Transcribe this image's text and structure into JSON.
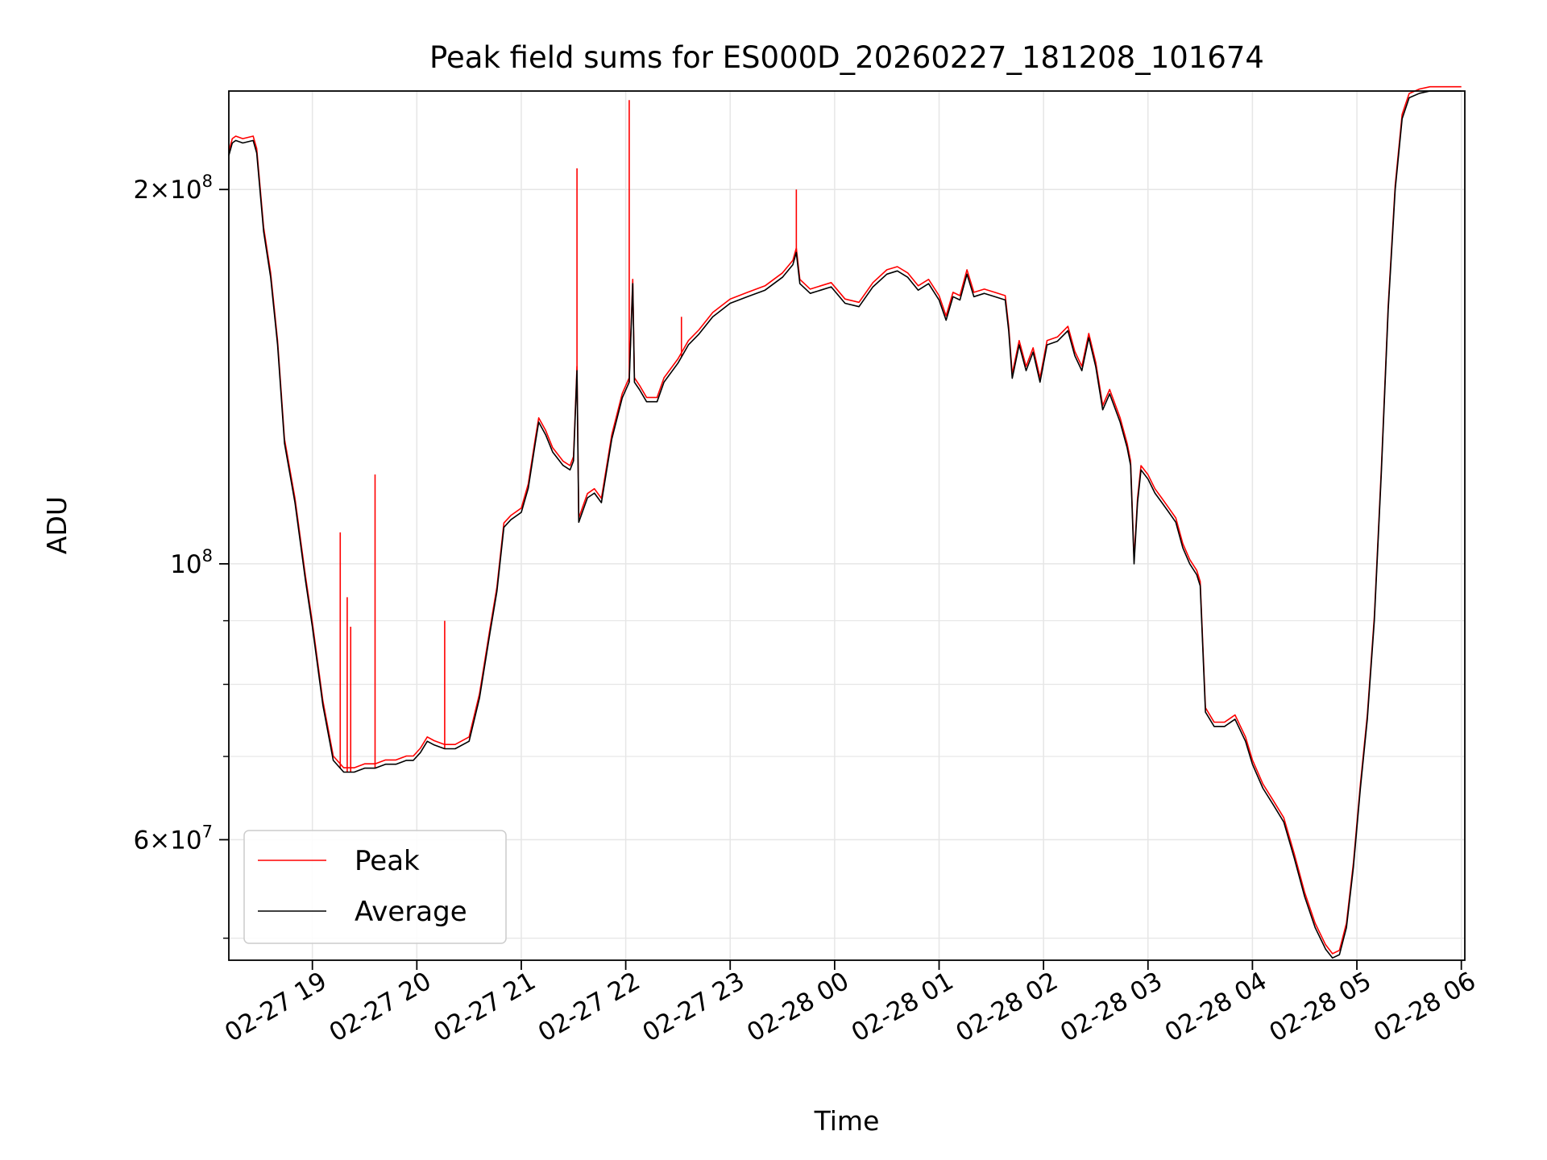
{
  "chart_data": {
    "type": "line",
    "title": "Peak field sums for ES000D_20260227_181208_101674",
    "xlabel": "Time",
    "ylabel": "ADU",
    "yscale": "log",
    "grid": true,
    "legend_position": "lower-left",
    "xlim": [
      "2026-02-27 18:12",
      "2026-02-28 06:02"
    ],
    "ylim": [
      48000000,
      240000000
    ],
    "x_ticks": [
      {
        "t": "2026-02-27 19:00",
        "label": "02-27 19"
      },
      {
        "t": "2026-02-27 20:00",
        "label": "02-27 20"
      },
      {
        "t": "2026-02-27 21:00",
        "label": "02-27 21"
      },
      {
        "t": "2026-02-27 22:00",
        "label": "02-27 22"
      },
      {
        "t": "2026-02-27 23:00",
        "label": "02-27 23"
      },
      {
        "t": "2026-02-28 00:00",
        "label": "02-28 00"
      },
      {
        "t": "2026-02-28 01:00",
        "label": "02-28 01"
      },
      {
        "t": "2026-02-28 02:00",
        "label": "02-28 02"
      },
      {
        "t": "2026-02-28 03:00",
        "label": "02-28 03"
      },
      {
        "t": "2026-02-28 04:00",
        "label": "02-28 04"
      },
      {
        "t": "2026-02-28 05:00",
        "label": "02-28 05"
      },
      {
        "t": "2026-02-28 06:00",
        "label": "02-28 06"
      }
    ],
    "y_ticks_major": [
      {
        "v": 60000000,
        "mant": "6",
        "exp": "7"
      },
      {
        "v": 100000000,
        "mant": "",
        "exp": "8"
      },
      {
        "v": 200000000,
        "mant": "2",
        "exp": "8"
      }
    ],
    "y_ticks_minor": [
      50000000,
      70000000,
      80000000,
      90000000
    ],
    "colors": {
      "peak": "#ff0000",
      "average": "#000000",
      "grid": "#e6e6e6"
    },
    "average_points": [
      [
        "2026-02-27 18:12",
        213000000
      ],
      [
        "2026-02-27 18:14",
        218000000
      ],
      [
        "2026-02-27 18:16",
        219000000
      ],
      [
        "2026-02-27 18:20",
        218000000
      ],
      [
        "2026-02-27 18:26",
        219000000
      ],
      [
        "2026-02-27 18:28",
        214000000
      ],
      [
        "2026-02-27 18:32",
        185000000
      ],
      [
        "2026-02-27 18:36",
        170000000
      ],
      [
        "2026-02-27 18:40",
        150000000
      ],
      [
        "2026-02-27 18:44",
        125000000
      ],
      [
        "2026-02-27 18:50",
        112000000
      ],
      [
        "2026-02-27 18:56",
        97000000
      ],
      [
        "2026-02-27 19:00",
        89000000
      ],
      [
        "2026-02-27 19:06",
        77000000
      ],
      [
        "2026-02-27 19:12",
        69500000
      ],
      [
        "2026-02-27 19:18",
        68000000
      ],
      [
        "2026-02-27 19:24",
        68000000
      ],
      [
        "2026-02-27 19:30",
        68500000
      ],
      [
        "2026-02-27 19:36",
        68500000
      ],
      [
        "2026-02-27 19:42",
        69000000
      ],
      [
        "2026-02-27 19:48",
        69000000
      ],
      [
        "2026-02-27 19:54",
        69500000
      ],
      [
        "2026-02-27 19:58",
        69500000
      ],
      [
        "2026-02-27 20:02",
        70500000
      ],
      [
        "2026-02-27 20:06",
        72000000
      ],
      [
        "2026-02-27 20:10",
        71500000
      ],
      [
        "2026-02-27 20:16",
        71000000
      ],
      [
        "2026-02-27 20:22",
        71000000
      ],
      [
        "2026-02-27 20:30",
        72000000
      ],
      [
        "2026-02-27 20:36",
        78000000
      ],
      [
        "2026-02-27 20:42",
        88000000
      ],
      [
        "2026-02-27 20:46",
        95000000
      ],
      [
        "2026-02-27 20:50",
        107000000
      ],
      [
        "2026-02-27 20:54",
        108500000
      ],
      [
        "2026-02-27 21:00",
        110000000
      ],
      [
        "2026-02-27 21:04",
        115000000
      ],
      [
        "2026-02-27 21:08",
        125000000
      ],
      [
        "2026-02-27 21:10",
        130000000
      ],
      [
        "2026-02-27 21:14",
        127000000
      ],
      [
        "2026-02-27 21:18",
        123000000
      ],
      [
        "2026-02-27 21:24",
        120000000
      ],
      [
        "2026-02-27 21:28",
        119000000
      ],
      [
        "2026-02-27 21:30",
        121000000
      ],
      [
        "2026-02-27 21:32",
        143000000
      ],
      [
        "2026-02-27 21:33",
        108000000
      ],
      [
        "2026-02-27 21:38",
        113000000
      ],
      [
        "2026-02-27 21:42",
        114000000
      ],
      [
        "2026-02-27 21:46",
        112000000
      ],
      [
        "2026-02-27 21:52",
        126000000
      ],
      [
        "2026-02-27 21:58",
        136000000
      ],
      [
        "2026-02-27 22:02",
        140000000
      ],
      [
        "2026-02-27 22:04",
        168000000
      ],
      [
        "2026-02-27 22:05",
        140000000
      ],
      [
        "2026-02-27 22:08",
        138000000
      ],
      [
        "2026-02-27 22:12",
        135000000
      ],
      [
        "2026-02-27 22:18",
        135000000
      ],
      [
        "2026-02-27 22:22",
        140000000
      ],
      [
        "2026-02-27 22:30",
        145000000
      ],
      [
        "2026-02-27 22:36",
        150000000
      ],
      [
        "2026-02-27 22:42",
        153000000
      ],
      [
        "2026-02-27 22:50",
        158000000
      ],
      [
        "2026-02-27 23:00",
        162000000
      ],
      [
        "2026-02-27 23:10",
        164000000
      ],
      [
        "2026-02-27 23:20",
        166000000
      ],
      [
        "2026-02-27 23:30",
        170000000
      ],
      [
        "2026-02-27 23:36",
        174000000
      ],
      [
        "2026-02-27 23:38",
        178000000
      ],
      [
        "2026-02-27 23:40",
        168000000
      ],
      [
        "2026-02-27 23:46",
        165000000
      ],
      [
        "2026-02-27 23:52",
        166000000
      ],
      [
        "2026-02-27 23:58",
        167000000
      ],
      [
        "2026-02-28 00:06",
        162000000
      ],
      [
        "2026-02-28 00:14",
        161000000
      ],
      [
        "2026-02-28 00:22",
        167000000
      ],
      [
        "2026-02-28 00:30",
        171000000
      ],
      [
        "2026-02-28 00:36",
        172000000
      ],
      [
        "2026-02-28 00:42",
        170000000
      ],
      [
        "2026-02-28 00:48",
        166000000
      ],
      [
        "2026-02-28 00:54",
        168000000
      ],
      [
        "2026-02-28 01:00",
        163000000
      ],
      [
        "2026-02-28 01:04",
        157000000
      ],
      [
        "2026-02-28 01:08",
        164000000
      ],
      [
        "2026-02-28 01:12",
        163000000
      ],
      [
        "2026-02-28 01:16",
        171000000
      ],
      [
        "2026-02-28 01:20",
        164000000
      ],
      [
        "2026-02-28 01:26",
        165000000
      ],
      [
        "2026-02-28 01:32",
        164000000
      ],
      [
        "2026-02-28 01:38",
        163000000
      ],
      [
        "2026-02-28 01:40",
        154000000
      ],
      [
        "2026-02-28 01:42",
        141000000
      ],
      [
        "2026-02-28 01:46",
        150000000
      ],
      [
        "2026-02-28 01:50",
        143000000
      ],
      [
        "2026-02-28 01:54",
        148000000
      ],
      [
        "2026-02-28 01:58",
        140000000
      ],
      [
        "2026-02-28 02:02",
        150000000
      ],
      [
        "2026-02-28 02:08",
        151000000
      ],
      [
        "2026-02-28 02:14",
        154000000
      ],
      [
        "2026-02-28 02:18",
        147000000
      ],
      [
        "2026-02-28 02:22",
        143000000
      ],
      [
        "2026-02-28 02:26",
        152000000
      ],
      [
        "2026-02-28 02:30",
        144000000
      ],
      [
        "2026-02-28 02:34",
        133000000
      ],
      [
        "2026-02-28 02:38",
        137000000
      ],
      [
        "2026-02-28 02:44",
        130000000
      ],
      [
        "2026-02-28 02:48",
        124000000
      ],
      [
        "2026-02-28 02:50",
        120000000
      ],
      [
        "2026-02-28 02:52",
        100000000
      ],
      [
        "2026-02-28 02:54",
        112000000
      ],
      [
        "2026-02-28 02:56",
        119000000
      ],
      [
        "2026-02-28 03:00",
        117000000
      ],
      [
        "2026-02-28 03:04",
        114000000
      ],
      [
        "2026-02-28 03:08",
        112000000
      ],
      [
        "2026-02-28 03:12",
        110000000
      ],
      [
        "2026-02-28 03:16",
        108000000
      ],
      [
        "2026-02-28 03:20",
        103000000
      ],
      [
        "2026-02-28 03:24",
        100000000
      ],
      [
        "2026-02-28 03:28",
        98000000
      ],
      [
        "2026-02-28 03:30",
        96000000
      ],
      [
        "2026-02-28 03:33",
        76000000
      ],
      [
        "2026-02-28 03:38",
        74000000
      ],
      [
        "2026-02-28 03:44",
        74000000
      ],
      [
        "2026-02-28 03:50",
        75000000
      ],
      [
        "2026-02-28 03:56",
        72000000
      ],
      [
        "2026-02-28 04:00",
        69000000
      ],
      [
        "2026-02-28 04:06",
        66000000
      ],
      [
        "2026-02-28 04:12",
        64000000
      ],
      [
        "2026-02-28 04:18",
        62000000
      ],
      [
        "2026-02-28 04:24",
        58000000
      ],
      [
        "2026-02-28 04:30",
        54000000
      ],
      [
        "2026-02-28 04:36",
        51000000
      ],
      [
        "2026-02-28 04:42",
        49000000
      ],
      [
        "2026-02-28 04:46",
        48200000
      ],
      [
        "2026-02-28 04:50",
        48500000
      ],
      [
        "2026-02-28 04:54",
        51000000
      ],
      [
        "2026-02-28 04:58",
        57000000
      ],
      [
        "2026-02-28 05:02",
        66000000
      ],
      [
        "2026-02-28 05:06",
        75000000
      ],
      [
        "2026-02-28 05:10",
        90000000
      ],
      [
        "2026-02-28 05:14",
        118000000
      ],
      [
        "2026-02-28 05:18",
        160000000
      ],
      [
        "2026-02-28 05:22",
        200000000
      ],
      [
        "2026-02-28 05:26",
        228000000
      ],
      [
        "2026-02-28 05:30",
        237000000
      ],
      [
        "2026-02-28 05:36",
        239000000
      ],
      [
        "2026-02-28 05:42",
        240000000
      ],
      [
        "2026-02-28 06:00",
        240000000
      ]
    ],
    "peak_spikes": [
      [
        "2026-02-27 19:16",
        106000000
      ],
      [
        "2026-02-27 19:20",
        94000000
      ],
      [
        "2026-02-27 19:22",
        89000000
      ],
      [
        "2026-02-27 19:36",
        118000000
      ],
      [
        "2026-02-27 20:16",
        90000000
      ],
      [
        "2026-02-27 21:32",
        208000000
      ],
      [
        "2026-02-27 22:02",
        236000000
      ],
      [
        "2026-02-27 22:32",
        158000000
      ],
      [
        "2026-02-27 23:38",
        200000000
      ]
    ],
    "series": [
      {
        "name": "Peak",
        "color": "#ff0000"
      },
      {
        "name": "Average",
        "color": "#000000"
      }
    ]
  }
}
